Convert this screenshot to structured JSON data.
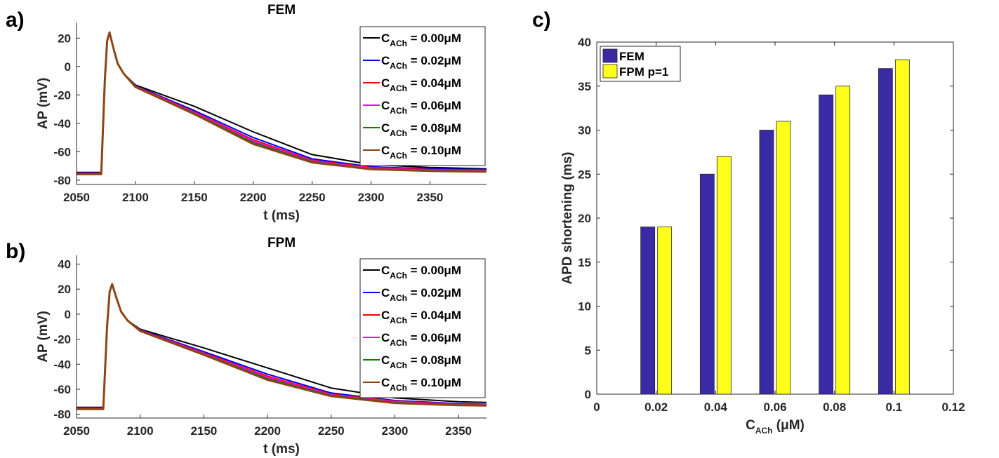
{
  "panels": {
    "a": "a)",
    "b": "b)",
    "c": "c)"
  },
  "chart_data": [
    {
      "type": "line",
      "title": "FEM",
      "xlabel": "t (ms)",
      "ylabel": "AP (mV)",
      "xlim": [
        2050,
        2398
      ],
      "ylim": [
        -83,
        31
      ],
      "xticks": [
        2050,
        2100,
        2150,
        2200,
        2250,
        2300,
        2350
      ],
      "yticks": [
        -80,
        -60,
        -40,
        -20,
        0,
        20
      ],
      "legend_location": "top-right",
      "legend_label_prefix": "C",
      "legend_label_sub": "ACh",
      "series": [
        {
          "name": "= 0.00μM",
          "color": "#000000",
          "x": [
            2050,
            2071,
            2074,
            2076,
            2078,
            2081,
            2085,
            2090,
            2100,
            2150,
            2200,
            2250,
            2300,
            2350,
            2398
          ],
          "y": [
            -74.5,
            -74.5,
            -10,
            18,
            24,
            14,
            2,
            -5,
            -13,
            -28,
            -46,
            -62,
            -69,
            -71,
            -72
          ]
        },
        {
          "name": "= 0.02μM",
          "color": "#0000ff",
          "x": [
            2050,
            2071,
            2074,
            2076,
            2078,
            2081,
            2085,
            2090,
            2100,
            2150,
            2200,
            2250,
            2300,
            2350,
            2398
          ],
          "y": [
            -75,
            -75,
            -10,
            18,
            24,
            14,
            2,
            -5,
            -13.5,
            -31,
            -50,
            -65,
            -70.5,
            -72,
            -72.5
          ]
        },
        {
          "name": "= 0.04μM",
          "color": "#ff0000",
          "x": [
            2050,
            2071,
            2074,
            2076,
            2078,
            2081,
            2085,
            2090,
            2100,
            2150,
            2200,
            2250,
            2300,
            2350,
            2398
          ],
          "y": [
            -75.2,
            -75.2,
            -10,
            18,
            24,
            14,
            2,
            -5,
            -13.8,
            -32,
            -51.5,
            -66,
            -71,
            -72.5,
            -73
          ]
        },
        {
          "name": "= 0.06μM",
          "color": "#ff00ff",
          "x": [
            2050,
            2071,
            2074,
            2076,
            2078,
            2081,
            2085,
            2090,
            2100,
            2150,
            2200,
            2250,
            2300,
            2350,
            2398
          ],
          "y": [
            -75.4,
            -75.4,
            -10,
            18,
            24,
            14,
            2,
            -5,
            -14,
            -32.5,
            -52.5,
            -66.5,
            -71.5,
            -73,
            -73.3
          ]
        },
        {
          "name": "= 0.08μM",
          "color": "#008000",
          "x": [
            2050,
            2071,
            2074,
            2076,
            2078,
            2081,
            2085,
            2090,
            2100,
            2150,
            2200,
            2250,
            2300,
            2350,
            2398
          ],
          "y": [
            -75.6,
            -75.6,
            -10,
            18,
            24,
            14,
            2,
            -5,
            -14.2,
            -33,
            -53.5,
            -67,
            -72,
            -73.3,
            -73.6
          ]
        },
        {
          "name": "= 0.10μM",
          "color": "#8b4513",
          "x": [
            2050,
            2071,
            2074,
            2076,
            2078,
            2081,
            2085,
            2090,
            2100,
            2150,
            2200,
            2250,
            2300,
            2350,
            2398
          ],
          "y": [
            -75.8,
            -75.8,
            -10,
            18,
            24,
            14,
            2,
            -5,
            -14.4,
            -33.5,
            -54.5,
            -67.5,
            -72.3,
            -73.5,
            -74
          ]
        }
      ]
    },
    {
      "type": "line",
      "title": "FPM",
      "xlabel": "t (ms)",
      "ylabel": "AP (mV)",
      "xlim": [
        2050,
        2372
      ],
      "ylim": [
        -83,
        47
      ],
      "xticks": [
        2050,
        2100,
        2150,
        2200,
        2250,
        2300,
        2350
      ],
      "yticks": [
        -80,
        -60,
        -40,
        -20,
        0,
        20,
        40
      ],
      "legend_location": "top-right",
      "legend_label_prefix": "C",
      "legend_label_sub": "ACh",
      "series": [
        {
          "name": "= 0.00μM",
          "color": "#000000",
          "x": [
            2050,
            2071,
            2074,
            2076,
            2078,
            2081,
            2085,
            2090,
            2100,
            2150,
            2200,
            2250,
            2300,
            2350,
            2372
          ],
          "y": [
            -74.5,
            -74.5,
            -10,
            18,
            24,
            14,
            2,
            -5,
            -12,
            -27,
            -43,
            -59,
            -67,
            -70,
            -70.5
          ]
        },
        {
          "name": "= 0.02μM",
          "color": "#0000ff",
          "x": [
            2050,
            2071,
            2074,
            2076,
            2078,
            2081,
            2085,
            2090,
            2100,
            2150,
            2200,
            2250,
            2300,
            2350,
            2372
          ],
          "y": [
            -75,
            -75,
            -10,
            18,
            24,
            14,
            2,
            -5,
            -12.5,
            -30,
            -48,
            -63,
            -69,
            -71.5,
            -72
          ]
        },
        {
          "name": "= 0.04μM",
          "color": "#ff0000",
          "x": [
            2050,
            2071,
            2074,
            2076,
            2078,
            2081,
            2085,
            2090,
            2100,
            2150,
            2200,
            2250,
            2300,
            2350,
            2372
          ],
          "y": [
            -75.2,
            -75.2,
            -10,
            18,
            24,
            14,
            2,
            -5,
            -12.8,
            -31,
            -49.5,
            -64,
            -69.5,
            -72,
            -72.3
          ]
        },
        {
          "name": "= 0.06μM",
          "color": "#ff00ff",
          "x": [
            2050,
            2071,
            2074,
            2076,
            2078,
            2081,
            2085,
            2090,
            2100,
            2150,
            2200,
            2250,
            2300,
            2350,
            2372
          ],
          "y": [
            -75.4,
            -75.4,
            -10,
            18,
            24,
            14,
            2,
            -5,
            -13,
            -31.5,
            -50.5,
            -64.5,
            -70,
            -72.3,
            -72.6
          ]
        },
        {
          "name": "= 0.08μM",
          "color": "#008000",
          "x": [
            2050,
            2071,
            2074,
            2076,
            2078,
            2081,
            2085,
            2090,
            2100,
            2150,
            2200,
            2250,
            2300,
            2350,
            2372
          ],
          "y": [
            -75.6,
            -75.6,
            -10,
            18,
            24,
            14,
            2,
            -5,
            -13.2,
            -32,
            -51.5,
            -65,
            -70.5,
            -72.6,
            -72.9
          ]
        },
        {
          "name": "= 0.10μM",
          "color": "#8b4513",
          "x": [
            2050,
            2071,
            2074,
            2076,
            2078,
            2081,
            2085,
            2090,
            2100,
            2150,
            2200,
            2250,
            2300,
            2350,
            2372
          ],
          "y": [
            -75.8,
            -75.8,
            -10,
            18,
            24,
            14,
            2,
            -5,
            -13.4,
            -32.5,
            -52.5,
            -65.5,
            -71,
            -72.8,
            -73.1
          ]
        }
      ]
    },
    {
      "type": "bar",
      "xlabel": "C",
      "xlabel_sub": "ACh",
      "xlabel_unit": " (μM)",
      "ylabel": "APD shortening (ms)",
      "xlim": [
        0,
        0.12
      ],
      "ylim": [
        0,
        40
      ],
      "xticks": [
        "0",
        "0.02",
        "0.04",
        "0.06",
        "0.08",
        "0.1",
        "0.12"
      ],
      "yticks": [
        "0",
        "5",
        "10",
        "15",
        "20",
        "25",
        "30",
        "35",
        "40"
      ],
      "legend_location": "top-left",
      "categories": [
        0.02,
        0.04,
        0.06,
        0.08,
        0.1
      ],
      "series": [
        {
          "name": "FEM",
          "color": "#3a2aa6",
          "values": [
            19,
            25,
            30,
            34,
            37
          ]
        },
        {
          "name": "FPM p=1",
          "color": "#ffff1a",
          "values": [
            19,
            27,
            31,
            35,
            38
          ]
        }
      ]
    }
  ]
}
